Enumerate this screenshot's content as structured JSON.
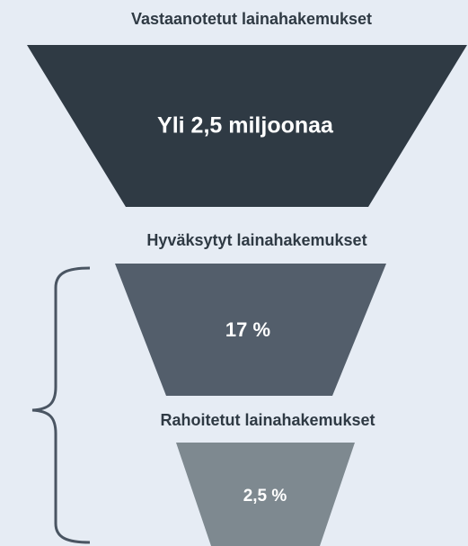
{
  "nodes": [
    {
      "label": "Vastaanotetut lainahakemukset",
      "value": "Yli 2,5 miljoonaa"
    },
    {
      "label": "Hyväksytyt lainahakemukset",
      "value": "17 %"
    },
    {
      "label": "Rahoitetut lainahakemukset",
      "value": "2,5 %"
    }
  ]
}
